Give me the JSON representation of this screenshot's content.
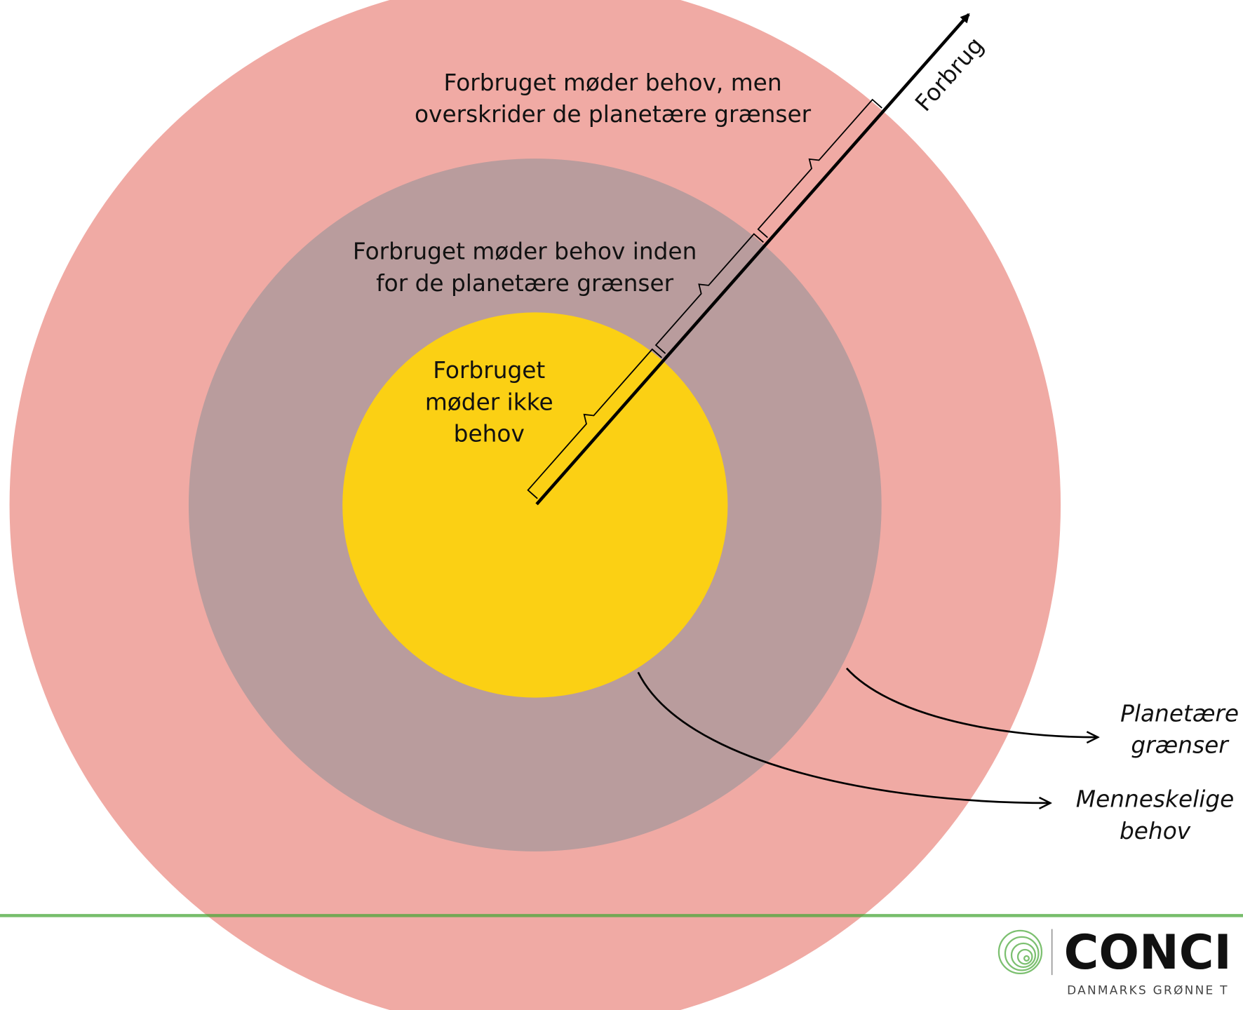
{
  "labels": {
    "outer": [
      "Forbruget møder behov, men",
      "overskrider de planetære grænser"
    ],
    "middle": [
      "Forbruget møder behov inden",
      "for de planetære grænser"
    ],
    "inner": [
      "Forbruget",
      "møder ikke",
      "behov"
    ],
    "axis": "Forbrug",
    "legend": [
      {
        "lines": [
          "Planetære",
          "grænser"
        ]
      },
      {
        "lines": [
          "Menneskelige",
          "behov"
        ]
      }
    ]
  },
  "logo": {
    "name": "CONCI",
    "tagline": "DANMARKS GRØNNE T"
  }
}
